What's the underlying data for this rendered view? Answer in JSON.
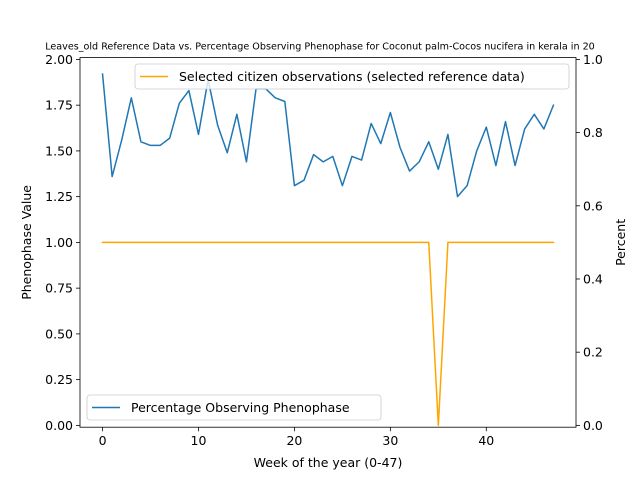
{
  "chart_data": {
    "type": "line",
    "title": "Leaves_old Reference Data vs. Percentage Observing Phenophase for Coconut palm-Cocos nucifera in kerala in 20",
    "xlabel": "Week of the year (0-47)",
    "ylabel": "Phenophase Value",
    "y2label": "Percent",
    "xlim": [
      -2.35,
      49.35
    ],
    "ylim": [
      -0.01,
      2.01
    ],
    "y2lim": [
      -0.005,
      1.005
    ],
    "xticks": [
      0,
      10,
      20,
      30,
      40
    ],
    "yticks": [
      0.0,
      0.25,
      0.5,
      0.75,
      1.0,
      1.25,
      1.5,
      1.75,
      2.0
    ],
    "y2ticks": [
      0.0,
      0.2,
      0.4,
      0.6,
      0.8,
      1.0
    ],
    "series": [
      {
        "name": "Percentage Observing Phenophase",
        "color": "#1f77b4",
        "axis": "left",
        "legend_location": "lower-left",
        "x": [
          0,
          1,
          2,
          3,
          4,
          5,
          6,
          7,
          8,
          9,
          10,
          11,
          12,
          13,
          14,
          15,
          16,
          17,
          18,
          19,
          20,
          21,
          22,
          23,
          24,
          25,
          26,
          27,
          28,
          29,
          30,
          31,
          32,
          33,
          34,
          35,
          36,
          37,
          38,
          39,
          40,
          41,
          42,
          43,
          44,
          45,
          46,
          47
        ],
        "values": [
          1.92,
          1.36,
          1.56,
          1.79,
          1.55,
          1.53,
          1.53,
          1.57,
          1.76,
          1.83,
          1.59,
          1.89,
          1.64,
          1.49,
          1.7,
          1.44,
          1.84,
          1.84,
          1.79,
          1.77,
          1.31,
          1.34,
          1.48,
          1.44,
          1.47,
          1.31,
          1.47,
          1.45,
          1.65,
          1.54,
          1.71,
          1.52,
          1.39,
          1.44,
          1.55,
          1.4,
          1.59,
          1.25,
          1.31,
          1.5,
          1.63,
          1.42,
          1.66,
          1.42,
          1.62,
          1.7,
          1.62,
          1.75
        ]
      },
      {
        "name": "Selected citizen observations (selected reference data)",
        "color": "#ffa500",
        "axis": "right",
        "legend_location": "upper-right",
        "x": [
          0,
          1,
          2,
          3,
          4,
          5,
          6,
          7,
          8,
          9,
          10,
          11,
          12,
          13,
          14,
          15,
          16,
          17,
          18,
          19,
          20,
          21,
          22,
          23,
          24,
          25,
          26,
          27,
          28,
          29,
          30,
          31,
          32,
          33,
          34,
          35,
          36,
          37,
          38,
          39,
          40,
          41,
          42,
          43,
          44,
          45,
          46,
          47
        ],
        "values": [
          0.5,
          0.5,
          0.5,
          0.5,
          0.5,
          0.5,
          0.5,
          0.5,
          0.5,
          0.5,
          0.5,
          0.5,
          0.5,
          0.5,
          0.5,
          0.5,
          0.5,
          0.5,
          0.5,
          0.5,
          0.5,
          0.5,
          0.5,
          0.5,
          0.5,
          0.5,
          0.5,
          0.5,
          0.5,
          0.5,
          0.5,
          0.5,
          0.5,
          0.5,
          0.5,
          0.0,
          0.5,
          0.5,
          0.5,
          0.5,
          0.5,
          0.5,
          0.5,
          0.5,
          0.5,
          0.5,
          0.5,
          0.5
        ]
      }
    ],
    "grid": false
  }
}
